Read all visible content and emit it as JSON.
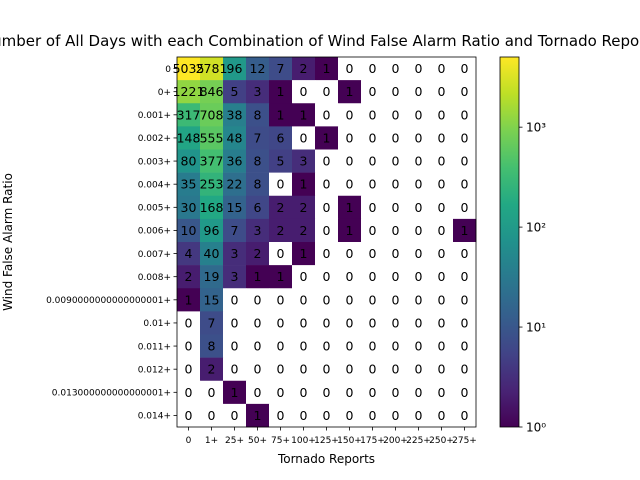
{
  "chart_data": {
    "type": "heatmap",
    "title": "Number of All Days with each Combination of Wind False Alarm Ratio and Tornado Reports",
    "xlabel": "Tornado Reports",
    "ylabel": "Wind False Alarm Ratio",
    "x_categories": [
      "0",
      "1+",
      "25+",
      "50+",
      "75+",
      "100+",
      "125+",
      "150+",
      "175+",
      "200+",
      "225+",
      "250+",
      "275+"
    ],
    "y_categories": [
      "0",
      "0+",
      "0.001+",
      "0.002+",
      "0.003+",
      "0.004+",
      "0.005+",
      "0.006+",
      "0.007+",
      "0.008+",
      "0.0090000000000000001+",
      "0.01+",
      "0.011+",
      "0.012+",
      "0.013000000000000001+",
      "0.014+"
    ],
    "values": [
      [
        5035,
        2781,
        96,
        12,
        7,
        2,
        1,
        0,
        0,
        0,
        0,
        0,
        0
      ],
      [
        1221,
        846,
        5,
        3,
        1,
        0,
        0,
        1,
        0,
        0,
        0,
        0,
        0
      ],
      [
        317,
        708,
        38,
        8,
        1,
        1,
        0,
        0,
        0,
        0,
        0,
        0,
        0
      ],
      [
        148,
        555,
        48,
        7,
        6,
        0,
        1,
        0,
        0,
        0,
        0,
        0,
        0
      ],
      [
        80,
        377,
        36,
        8,
        5,
        3,
        0,
        0,
        0,
        0,
        0,
        0,
        0
      ],
      [
        35,
        253,
        22,
        8,
        0,
        1,
        0,
        0,
        0,
        0,
        0,
        0,
        0
      ],
      [
        30,
        168,
        15,
        6,
        2,
        2,
        0,
        1,
        0,
        0,
        0,
        0,
        0
      ],
      [
        10,
        96,
        7,
        3,
        2,
        2,
        0,
        1,
        0,
        0,
        0,
        0,
        1
      ],
      [
        4,
        40,
        3,
        2,
        0,
        1,
        0,
        0,
        0,
        0,
        0,
        0,
        0
      ],
      [
        2,
        19,
        3,
        1,
        1,
        0,
        0,
        0,
        0,
        0,
        0,
        0,
        0
      ],
      [
        1,
        15,
        0,
        0,
        0,
        0,
        0,
        0,
        0,
        0,
        0,
        0,
        0
      ],
      [
        0,
        7,
        0,
        0,
        0,
        0,
        0,
        0,
        0,
        0,
        0,
        0,
        0
      ],
      [
        0,
        8,
        0,
        0,
        0,
        0,
        0,
        0,
        0,
        0,
        0,
        0,
        0
      ],
      [
        0,
        2,
        0,
        0,
        0,
        0,
        0,
        0,
        0,
        0,
        0,
        0,
        0
      ],
      [
        0,
        0,
        1,
        0,
        0,
        0,
        0,
        0,
        0,
        0,
        0,
        0,
        0
      ],
      [
        0,
        0,
        0,
        1,
        0,
        0,
        0,
        0,
        0,
        0,
        0,
        0,
        0
      ]
    ],
    "color_scale": "log",
    "colormap": "viridis",
    "zero_cell_color": "#ffffff",
    "colorbar": {
      "range": [
        1,
        5035
      ],
      "tick_values": [
        1,
        10,
        100,
        1000
      ],
      "tick_labels": [
        "10⁰",
        "10¹",
        "10²",
        "10³"
      ]
    },
    "grid": false
  }
}
